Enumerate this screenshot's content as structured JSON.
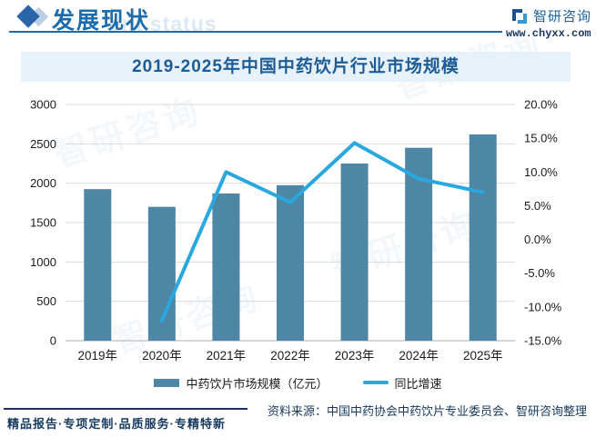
{
  "header": {
    "section_title": "发展现状",
    "section_title_ghost": "ent status",
    "brand_name": "智研咨询",
    "website": "www.chyxx.com"
  },
  "watermark": {
    "text": "智研咨询"
  },
  "chart": {
    "banner_title": "2019-2025年中国中药饮片行业市场规模"
  },
  "chart_data": {
    "type": "bar",
    "subtype": "combo-bar-line",
    "title": "2019-2025年中国中药饮片行业市场规模",
    "categories": [
      "2019年",
      "2020年",
      "2021年",
      "2022年",
      "2023年",
      "2024年",
      "2025年"
    ],
    "series": [
      {
        "name": "中药饮片市场规模（亿元）",
        "chart": "bar",
        "axis": "left",
        "color": "#4e86a6",
        "values": [
          1925,
          1700,
          1870,
          1975,
          2250,
          2450,
          2620
        ]
      },
      {
        "name": "同比增速",
        "chart": "line",
        "axis": "right",
        "color": "#29a8e0",
        "values": [
          null,
          -12.0,
          10.0,
          5.5,
          14.3,
          9.0,
          7.0
        ]
      }
    ],
    "left_axis": {
      "min": 0,
      "max": 3000,
      "step": 500,
      "format": "integer"
    },
    "right_axis": {
      "min": -15,
      "max": 20,
      "step": 5,
      "format": "percent_1dp"
    },
    "grid": true,
    "legend_position": "bottom"
  },
  "footer": {
    "tagline": "精品报告·专项定制·品质服务·专精特新",
    "source": "资料来源：中国中药协会中药饮片专业委员会、智研咨询整理"
  },
  "colors": {
    "accent_blue": "#1c6aa8",
    "title_blue": "#1d6cab",
    "banner_bg": "#e7f1f9",
    "banner_text": "#1d5c94",
    "bar": "#4e86a6",
    "line": "#29a8e0",
    "grid": "#d9d9d9",
    "baseline": "#adadad",
    "axis_text": "#1a1a1a",
    "navy_text": "#173a5e"
  }
}
